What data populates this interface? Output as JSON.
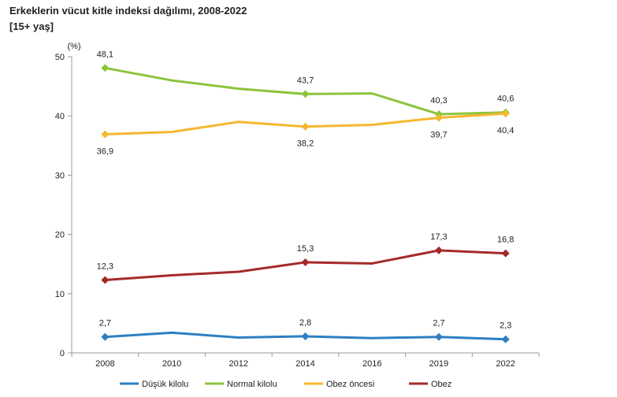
{
  "title": "Erkeklerin vücut kitle indeksi dağılımı, 2008-2022",
  "subtitle": "[15+ yaş]",
  "chart_data": {
    "type": "line",
    "title": "Erkeklerin vücut kitle indeksi dağılımı, 2008-2022",
    "subtitle": "[15+ yaş]",
    "ylabel": "(%)",
    "xlabel": "",
    "ylim": [
      0,
      50
    ],
    "yticks": [
      "0",
      "10",
      "20",
      "30",
      "40",
      "50"
    ],
    "categories": [
      "2008",
      "2010",
      "2012",
      "2014",
      "2016",
      "2019",
      "2022"
    ],
    "grid": false,
    "legend_position": "bottom",
    "series": [
      {
        "name": "Düşük kilolu",
        "color": "#2e7fc1",
        "values": [
          2.7,
          3.4,
          2.6,
          2.8,
          2.5,
          2.7,
          2.3
        ],
        "labels": [
          "2,7",
          "",
          "",
          "2,8",
          "",
          "2,7",
          "2,3"
        ]
      },
      {
        "name": "Normal kilolu",
        "color": "#8cc43c",
        "values": [
          48.1,
          46.0,
          44.6,
          43.7,
          43.8,
          40.3,
          40.6
        ],
        "labels": [
          "48,1",
          "",
          "",
          "43,7",
          "",
          "40,3",
          "40,6"
        ]
      },
      {
        "name": "Obez öncesi",
        "color": "#f5b82e",
        "values": [
          36.9,
          37.3,
          39.0,
          38.2,
          38.5,
          39.7,
          40.4
        ],
        "labels": [
          "36,9",
          "",
          "",
          "38,2",
          "",
          "39,7",
          "40,4"
        ]
      },
      {
        "name": "Obez",
        "color": "#a52a2a",
        "values": [
          12.3,
          13.1,
          13.7,
          15.3,
          15.1,
          17.3,
          16.8
        ],
        "labels": [
          "12,3",
          "",
          "",
          "15,3",
          "",
          "17,3",
          "16,8"
        ]
      }
    ]
  }
}
